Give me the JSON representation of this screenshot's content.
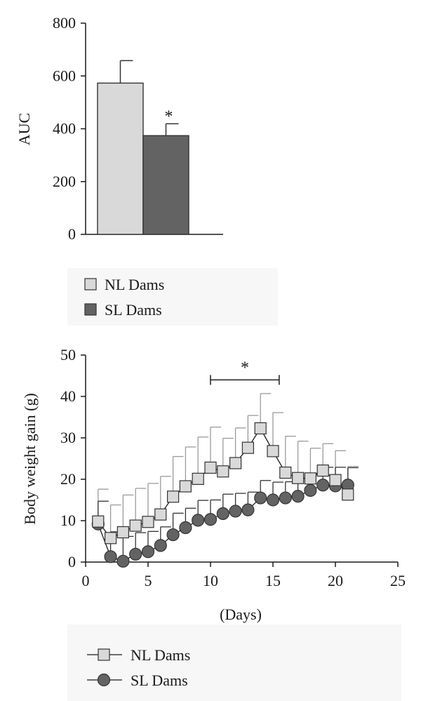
{
  "chart_data": [
    {
      "type": "bar",
      "title": "",
      "xlabel": "",
      "ylabel": "AUC",
      "ylim": [
        0,
        800
      ],
      "yticks": [
        "0",
        "200",
        "400",
        "600",
        "800"
      ],
      "categories": [
        "NL Dams",
        "SL Dams"
      ],
      "values": [
        573,
        374
      ],
      "errors": [
        85,
        45
      ],
      "colors": [
        "#d9d9d9",
        "#636363"
      ],
      "annotations": [
        {
          "category": "SL Dams",
          "text": "*"
        }
      ],
      "legend": {
        "position": "bottom-left",
        "entries": [
          {
            "label": "NL Dams",
            "color": "#d9d9d9"
          },
          {
            "label": "SL Dams",
            "color": "#636363"
          }
        ]
      },
      "grid": false
    },
    {
      "type": "line",
      "title": "",
      "xlabel": "(Days)",
      "ylabel": "Body weight gain (g)",
      "xlim": [
        0,
        25
      ],
      "ylim": [
        0,
        50
      ],
      "xticks": [
        "0",
        "5",
        "10",
        "15",
        "20",
        "25"
      ],
      "yticks": [
        "0",
        "10",
        "20",
        "30",
        "40",
        "50"
      ],
      "grid": false,
      "series": [
        {
          "name": "NL Dams",
          "marker": "square",
          "color": "#d9d9d9",
          "x": [
            1,
            2,
            3,
            4,
            5,
            6,
            7,
            8,
            9,
            10,
            11,
            12,
            13,
            14,
            15,
            16,
            17,
            18,
            19,
            20,
            21
          ],
          "y": [
            9.8,
            5.8,
            7.2,
            8.8,
            9.7,
            11.5,
            15.8,
            18.3,
            20.1,
            22.8,
            21.9,
            23.9,
            27.6,
            32.3,
            26.8,
            21.6,
            20.3,
            20.2,
            22.1,
            19.8,
            16.3
          ],
          "error": [
            7.8,
            8.0,
            9.0,
            9.0,
            9.3,
            9.2,
            9.7,
            9.5,
            10.1,
            9.8,
            8.0,
            8.5,
            7.8,
            8.4,
            9.3,
            8.8,
            8.9,
            7.3,
            6.5,
            7.1,
            6.8
          ]
        },
        {
          "name": "SL Dams",
          "marker": "circle",
          "color": "#636363",
          "x": [
            1,
            2,
            3,
            4,
            5,
            6,
            7,
            8,
            9,
            10,
            11,
            12,
            13,
            14,
            15,
            16,
            17,
            18,
            19,
            20,
            21
          ],
          "y": [
            9.2,
            1.3,
            0.2,
            1.9,
            2.5,
            4.0,
            6.6,
            8.3,
            10.1,
            10.3,
            11.7,
            12.3,
            12.6,
            15.5,
            15.0,
            15.5,
            15.9,
            17.3,
            18.6,
            18.4,
            18.6
          ],
          "error": [
            5.5,
            6.0,
            6.0,
            5.2,
            4.9,
            4.5,
            5.2,
            4.7,
            4.8,
            4.7,
            4.7,
            4.3,
            4.3,
            4.2,
            4.3,
            3.9,
            4.3,
            4.1,
            4.3,
            4.5,
            4.2
          ]
        }
      ],
      "annotations": [
        {
          "x_from": 10,
          "x_to": 15.5,
          "y": 44,
          "text": "*"
        }
      ],
      "legend": {
        "position": "bottom-left",
        "entries": [
          {
            "label": "NL Dams",
            "marker": "square"
          },
          {
            "label": "SL Dams",
            "marker": "circle"
          }
        ]
      }
    }
  ]
}
